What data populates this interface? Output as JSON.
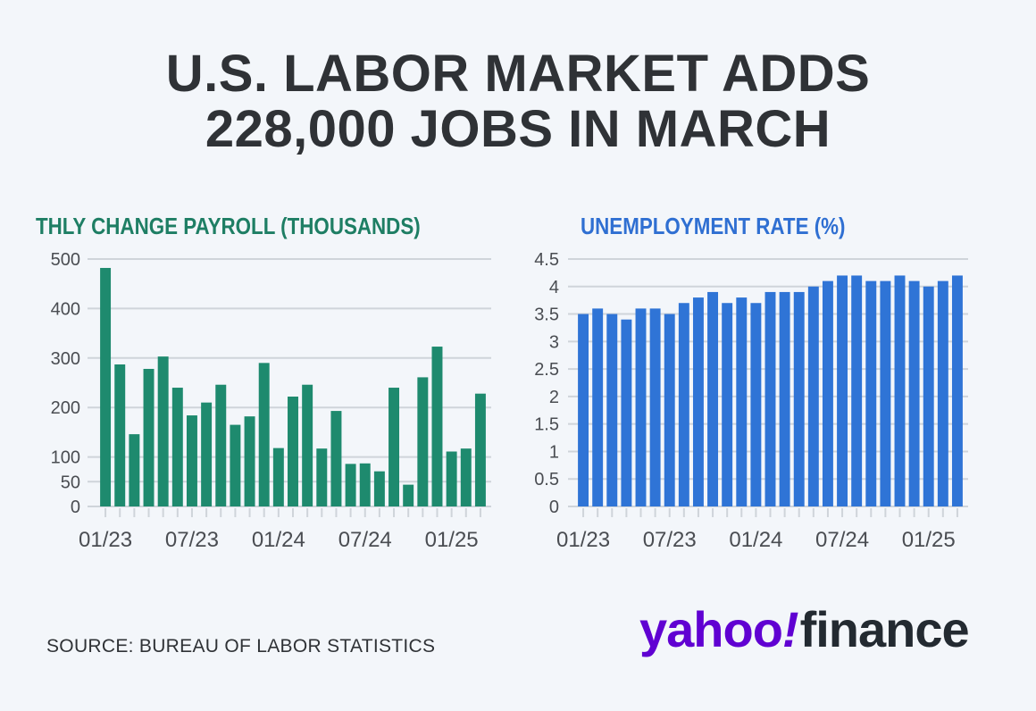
{
  "headline": {
    "line1": "U.S. LABOR MARKET ADDS",
    "line2": "228,000 JOBS IN MARCH"
  },
  "source": "SOURCE: BUREAU OF LABOR STATISTICS",
  "logo": {
    "part1": "yahoo",
    "bang": "!",
    "part2": "finance"
  },
  "colors": {
    "payroll": "#1e8a6e",
    "unemployment": "#2f74d6",
    "grid": "#cfd4da",
    "axis_text": "#4a4d52",
    "brand_purple": "#6001d2"
  },
  "chart_data": [
    {
      "type": "bar",
      "title": "THLY CHANGE PAYROLL (THOUSANDS)",
      "color": "#1e8a6e",
      "x_tick_labels": [
        "01/23",
        "07/23",
        "01/24",
        "07/24",
        "01/25"
      ],
      "x_tick_index": [
        0,
        6,
        12,
        18,
        24
      ],
      "y_ticks": [
        0,
        50,
        100,
        200,
        300,
        400,
        500
      ],
      "ylim": [
        0,
        500
      ],
      "grid": true,
      "values": [
        482,
        287,
        146,
        278,
        303,
        240,
        184,
        210,
        246,
        165,
        182,
        290,
        118,
        222,
        246,
        117,
        193,
        86,
        87,
        71,
        240,
        44,
        261,
        323,
        111,
        117,
        228
      ]
    },
    {
      "type": "bar",
      "title": "UNEMPLOYMENT RATE (%)",
      "color": "#2f74d6",
      "x_tick_labels": [
        "01/23",
        "07/23",
        "01/24",
        "07/24",
        "01/25"
      ],
      "x_tick_index": [
        0,
        6,
        12,
        18,
        24
      ],
      "y_ticks": [
        0,
        0.5,
        1,
        1.5,
        2,
        2.5,
        3,
        3.5,
        4,
        4.5
      ],
      "ylim": [
        0,
        4.5
      ],
      "grid": true,
      "values": [
        3.5,
        3.6,
        3.5,
        3.4,
        3.6,
        3.6,
        3.5,
        3.7,
        3.8,
        3.9,
        3.7,
        3.8,
        3.7,
        3.9,
        3.9,
        3.9,
        4.0,
        4.1,
        4.2,
        4.2,
        4.1,
        4.1,
        4.2,
        4.1,
        4.0,
        4.1,
        4.2
      ]
    }
  ]
}
